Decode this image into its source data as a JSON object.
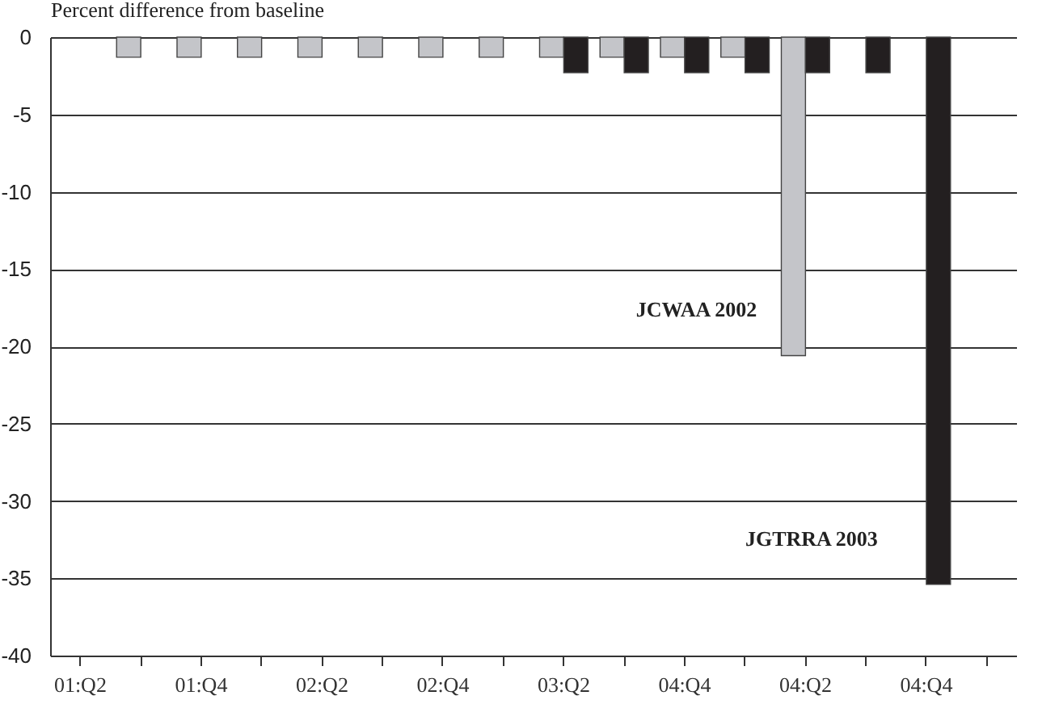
{
  "chart_data": {
    "type": "bar",
    "ylabel": "Percent difference from baseline",
    "categories": [
      "01:Q2",
      null,
      "01:Q4",
      null,
      "02:Q2",
      null,
      "02:Q4",
      null,
      "03:Q2",
      null,
      "04:Q4",
      null,
      "04:Q2",
      null,
      "04:Q4",
      null
    ],
    "series": [
      {
        "color": "#c4c5c9",
        "values": [
          null,
          -1.3,
          -1.3,
          -1.3,
          -1.3,
          -1.3,
          -1.3,
          -1.3,
          -1.3,
          -1.3,
          -1.3,
          -1.3,
          -20.6,
          null,
          null,
          null
        ]
      },
      {
        "color": "#231f20",
        "values": [
          null,
          null,
          null,
          null,
          null,
          null,
          null,
          null,
          -2.3,
          -2.3,
          -2.3,
          -2.3,
          -2.3,
          -2.3,
          -35.4,
          null
        ]
      }
    ],
    "ylim": [
      -40,
      0
    ],
    "yticks": [
      0,
      -5,
      -10,
      -15,
      -20,
      -25,
      -30,
      -35,
      -40
    ],
    "grid": "y",
    "legend": false,
    "annotations": [
      "JCWAA 2002",
      "JGTRRA 2003"
    ]
  }
}
